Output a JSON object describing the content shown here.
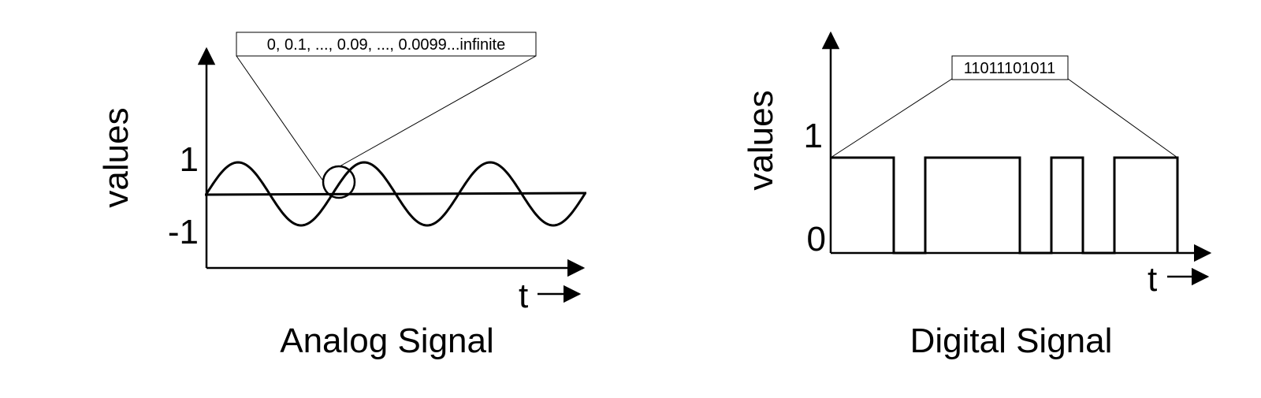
{
  "analog": {
    "title": "Analog Signal",
    "ylabel": "values",
    "xlabel": "t",
    "tick_high": "1",
    "tick_low": "-1",
    "callout": "0, 0.1, ..., 0.09, ..., 0.0099...infinite"
  },
  "digital": {
    "title": "Digital Signal",
    "ylabel": "values",
    "xlabel": "t",
    "tick_high": "1",
    "tick_low": "0",
    "callout": "11011101011",
    "bits": [
      1,
      1,
      0,
      1,
      1,
      1,
      0,
      1,
      0,
      1,
      1
    ]
  },
  "colors": {
    "ink": "#000000",
    "background": "#ffffff"
  }
}
